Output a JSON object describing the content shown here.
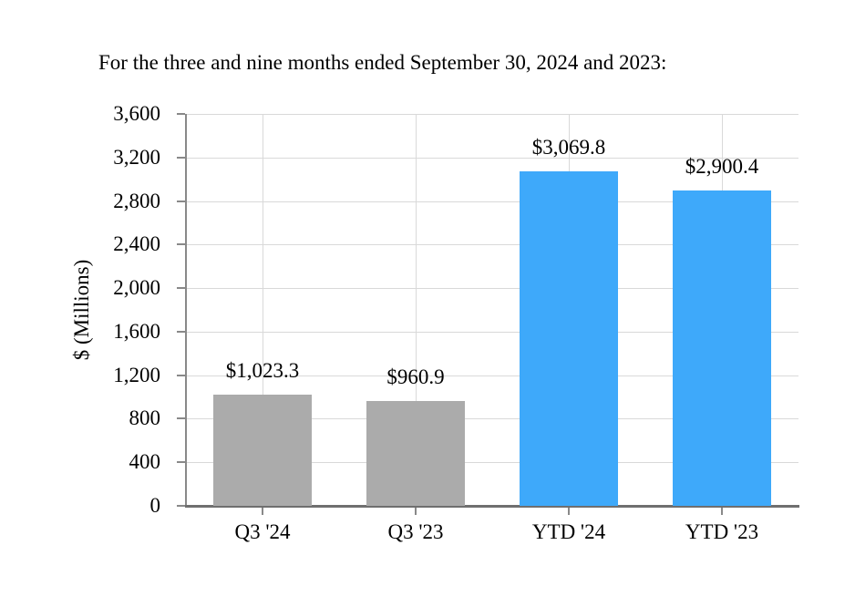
{
  "chart_data": {
    "type": "bar",
    "title": "For the three and nine months ended September 30, 2024 and 2023:",
    "ylabel": "$ (Millions)",
    "xlabel": "",
    "categories": [
      "Q3 '24",
      "Q3 '23",
      "YTD '24",
      "YTD '23"
    ],
    "values": [
      1023.3,
      960.9,
      3069.8,
      2900.4
    ],
    "data_labels": [
      "$1,023.3",
      "$960.9",
      "$3,069.8",
      "$2,900.4"
    ],
    "bar_colors": [
      "#ABABAB",
      "#ABABAB",
      "#3EA9FA",
      "#3EA9FA"
    ],
    "ylim": [
      0,
      3600
    ],
    "ytick_step": 400,
    "yticks": [
      {
        "value": 0,
        "label": "0"
      },
      {
        "value": 400,
        "label": "400"
      },
      {
        "value": 800,
        "label": "800"
      },
      {
        "value": 1200,
        "label": "1,200"
      },
      {
        "value": 1600,
        "label": "1,600"
      },
      {
        "value": 2000,
        "label": "2,000"
      },
      {
        "value": 2400,
        "label": "2,400"
      },
      {
        "value": 2800,
        "label": "2,800"
      },
      {
        "value": 3200,
        "label": "3,200"
      },
      {
        "value": 3600,
        "label": "3,600"
      }
    ],
    "grid": "horizontal gridlines at every y tick and vertical gridlines at category centers",
    "legend_position": "none"
  },
  "colors": {
    "gray_bar": "#ABABAB",
    "blue_bar": "#3EA9FA",
    "gridline": "#D9D9D9",
    "axis_line": "#898989",
    "x_axis_line": "#6F6F6F",
    "text": "#000000",
    "background": "#FFFFFF"
  }
}
